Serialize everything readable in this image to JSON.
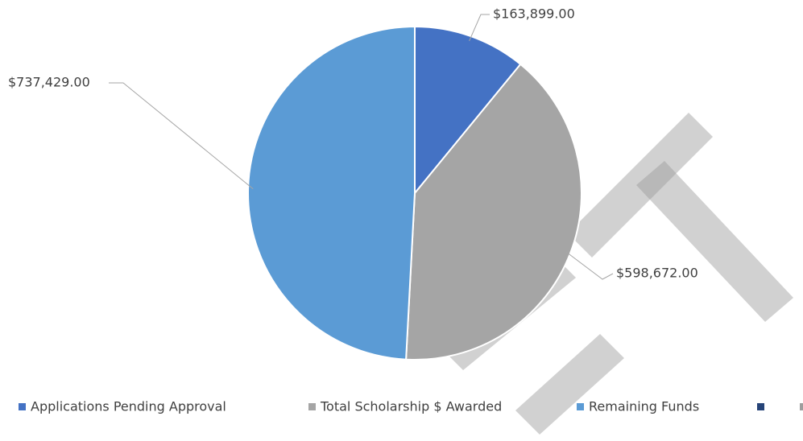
{
  "chart_data": {
    "type": "pie",
    "categories": [
      "Applications Pending Approval",
      "Total Scholarship $ Awarded",
      "Remaining Funds"
    ],
    "values": [
      163899,
      598672,
      737429
    ],
    "value_labels": [
      "$163,899.00",
      "$598,672.00",
      "$737,429.00"
    ],
    "colors": [
      "#4472c4",
      "#a5a5a5",
      "#5b9bd5"
    ],
    "legend": "bottom"
  }
}
